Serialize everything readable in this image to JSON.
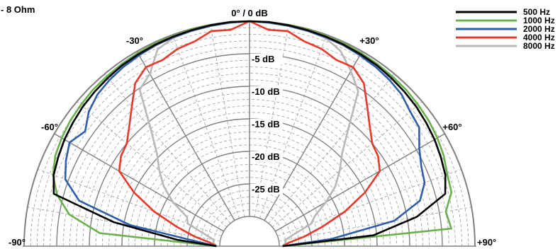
{
  "chart_data": {
    "type": "polar",
    "corner_label": "- 8 Ohm",
    "radial_unit": "dB",
    "radial_range": [
      -30,
      0
    ],
    "radial_ticks": [
      {
        "value": 0,
        "label": "0° / 0 dB"
      },
      {
        "value": -5,
        "label": "-5 dB"
      },
      {
        "value": -10,
        "label": "-10 dB"
      },
      {
        "value": -15,
        "label": "-15 dB"
      },
      {
        "value": -20,
        "label": "-20 dB"
      },
      {
        "value": -25,
        "label": "-25 dB"
      }
    ],
    "angle_ticks": [
      {
        "value": -90,
        "label": "-90°"
      },
      {
        "value": -60,
        "label": "-60°"
      },
      {
        "value": -30,
        "label": "-30°"
      },
      {
        "value": 30,
        "label": "+30°"
      },
      {
        "value": 60,
        "label": "+60°"
      },
      {
        "value": 90,
        "label": "+90°"
      }
    ],
    "angle_range": [
      -90,
      90
    ],
    "legend_position": "top-right",
    "angles": [
      -90,
      -85,
      -80,
      -75,
      -70,
      -65,
      -60,
      -55,
      -50,
      -45,
      -40,
      -35,
      -30,
      -25,
      -20,
      -15,
      -10,
      -5,
      0,
      5,
      10,
      15,
      20,
      25,
      30,
      35,
      40,
      45,
      50,
      55,
      60,
      65,
      70,
      75,
      80,
      85,
      90
    ],
    "series": [
      {
        "name": "500 Hz",
        "color": "#000000",
        "values": [
          -29.5,
          -23.5,
          -13.5,
          -3.5,
          -2.6,
          -2.2,
          -1.8,
          -1.5,
          -1.2,
          -1.0,
          -0.8,
          -0.6,
          -0.5,
          -0.4,
          -0.3,
          -0.2,
          -0.1,
          0,
          0,
          0,
          -0.1,
          -0.2,
          -0.3,
          -0.4,
          -0.5,
          -0.6,
          -0.8,
          -1.0,
          -1.2,
          -1.5,
          -1.8,
          -2.2,
          -2.6,
          -3.5,
          -8.5,
          -15.5,
          -29.5
        ]
      },
      {
        "name": "1000 Hz",
        "color": "#6ab04c",
        "values": [
          -29.5,
          -11.5,
          -6.5,
          -4.0,
          -2.5,
          -1.7,
          -1.3,
          -1.0,
          -0.8,
          -0.6,
          -0.5,
          -0.4,
          -0.3,
          -0.2,
          -0.2,
          -0.1,
          -0.1,
          0,
          0,
          0,
          -0.1,
          -0.1,
          -0.2,
          -0.2,
          -0.3,
          -0.4,
          -0.5,
          -0.6,
          -0.8,
          -1.0,
          -1.3,
          -1.7,
          -2.3,
          -2.5,
          -4.0,
          -3.5,
          -29.5
        ]
      },
      {
        "name": "2000 Hz",
        "color": "#2e5ea8",
        "values": [
          -29.5,
          -26.5,
          -16.0,
          -7.5,
          -4.5,
          -3.5,
          -2.7,
          -3.8,
          -2.4,
          -1.6,
          -1.2,
          -0.9,
          -0.7,
          -0.5,
          -0.4,
          -0.3,
          -0.2,
          -0.1,
          0,
          -0.1,
          -0.2,
          -0.3,
          -0.4,
          -0.5,
          -0.7,
          -0.9,
          -1.2,
          -1.6,
          -2.4,
          -2.8,
          -4.5,
          -5.5,
          -6.0,
          -7.5,
          -12.0,
          -22.0,
          -29.5
        ]
      },
      {
        "name": "4000 Hz",
        "color": "#e8392a",
        "values": [
          -29.5,
          -28.5,
          -26.0,
          -23.0,
          -19.0,
          -15.0,
          -11.5,
          -10.5,
          -10.0,
          -8.5,
          -6.5,
          -4.0,
          -2.8,
          -3.0,
          -2.3,
          -2.0,
          -1.0,
          -1.2,
          0,
          -1.2,
          -1.0,
          -2.0,
          -2.3,
          -3.0,
          -2.8,
          -4.0,
          -6.5,
          -8.5,
          -10.0,
          -10.5,
          -11.5,
          -15.0,
          -19.0,
          -23.0,
          -26.0,
          -28.5,
          -29.5
        ]
      },
      {
        "name": "8000 Hz",
        "color": "#b8b8b8",
        "values": [
          -29.5,
          -29.0,
          -29.0,
          -27.5,
          -24.5,
          -24.0,
          -21.0,
          -18.5,
          -16.5,
          -14.5,
          -11.0,
          -5.2,
          -4.0,
          -1.2,
          -0.5,
          -0.3,
          -0.2,
          -0.1,
          0,
          -0.1,
          -0.2,
          -0.3,
          -0.5,
          -1.5,
          -3.5,
          -5.5,
          -11.0,
          -14.5,
          -16.5,
          -18.5,
          -21.0,
          -23.5,
          -24.5,
          -27.5,
          -29.0,
          -29.0,
          -29.5
        ]
      }
    ]
  }
}
